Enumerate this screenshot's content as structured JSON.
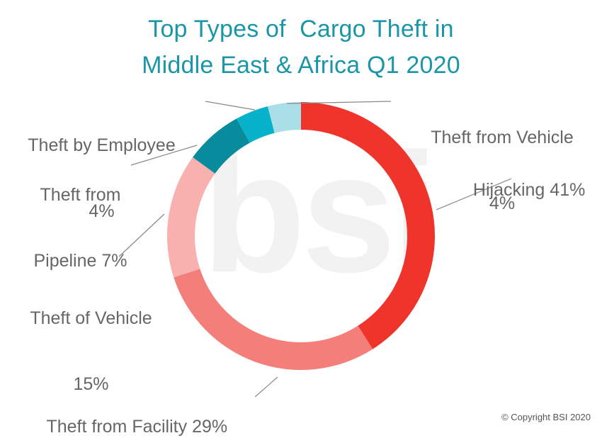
{
  "chart_data": {
    "type": "pie",
    "title_lines": [
      "Top Types of  Cargo Theft in",
      "Middle East & Africa Q1 2020"
    ],
    "slices": [
      {
        "name": "Hijacking",
        "value": 41,
        "value_label": "41%",
        "color": "#ee2d24"
      },
      {
        "name": "Theft from Facility",
        "value": 29,
        "value_label": "29%",
        "color": "#f47a76"
      },
      {
        "name": "Theft of Vehicle",
        "value": 15,
        "value_label": "15%",
        "color": "#f8aeab"
      },
      {
        "name": "Theft from Pipeline",
        "value": 7,
        "value_label": "7%",
        "color": "#00889a"
      },
      {
        "name": "Theft by Employee",
        "value": 4,
        "value_label": "4%",
        "color": "#00b0c8"
      },
      {
        "name": "Theft from Vehicle",
        "value": 4,
        "value_label": "4%",
        "color": "#a8dee6"
      }
    ],
    "labels": {
      "hijacking": {
        "name": "Hijacking",
        "value": "41%"
      },
      "facility": {
        "name": "Theft from Facility",
        "value": "29%"
      },
      "vehicle_of": {
        "name": "Theft of Vehicle",
        "value": "15%"
      },
      "pipeline": {
        "name_line1": "Theft from",
        "name_line2": "Pipeline",
        "value": "7%"
      },
      "employee": {
        "name": "Theft by Employee",
        "value": "4%"
      },
      "vehicle_from": {
        "name": "Theft from Vehicle",
        "value": "4%"
      }
    }
  },
  "watermark": "bsi",
  "copyright": "© Copyright BSI 2020"
}
